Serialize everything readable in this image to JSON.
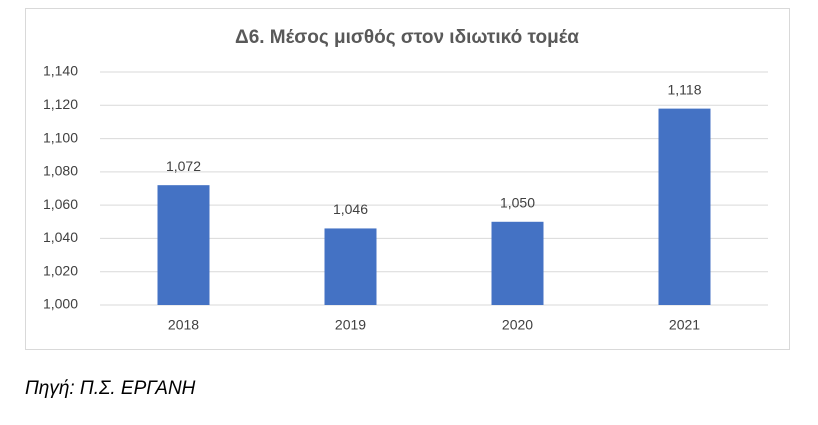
{
  "chart_data": {
    "type": "bar",
    "title": "Δ6. Μέσος μισθός στον ιδιωτικό τομέα",
    "categories": [
      "2018",
      "2019",
      "2020",
      "2021"
    ],
    "values": [
      1072,
      1046,
      1050,
      1118
    ],
    "value_labels": [
      "1,072",
      "1,046",
      "1,050",
      "1,118"
    ],
    "color": "#4472c4",
    "ylim": [
      1000,
      1140
    ],
    "yticks": [
      {
        "value": 1000,
        "label": "1,000"
      },
      {
        "value": 1020,
        "label": "1,020"
      },
      {
        "value": 1040,
        "label": "1,040"
      },
      {
        "value": 1060,
        "label": "1,060"
      },
      {
        "value": 1080,
        "label": "1,080"
      },
      {
        "value": 1100,
        "label": "1,100"
      },
      {
        "value": 1120,
        "label": "1,120"
      },
      {
        "value": 1140,
        "label": "1,140"
      }
    ],
    "grid": true
  },
  "caption": "Πηγή: Π.Σ. ΕΡΓΑΝΗ"
}
